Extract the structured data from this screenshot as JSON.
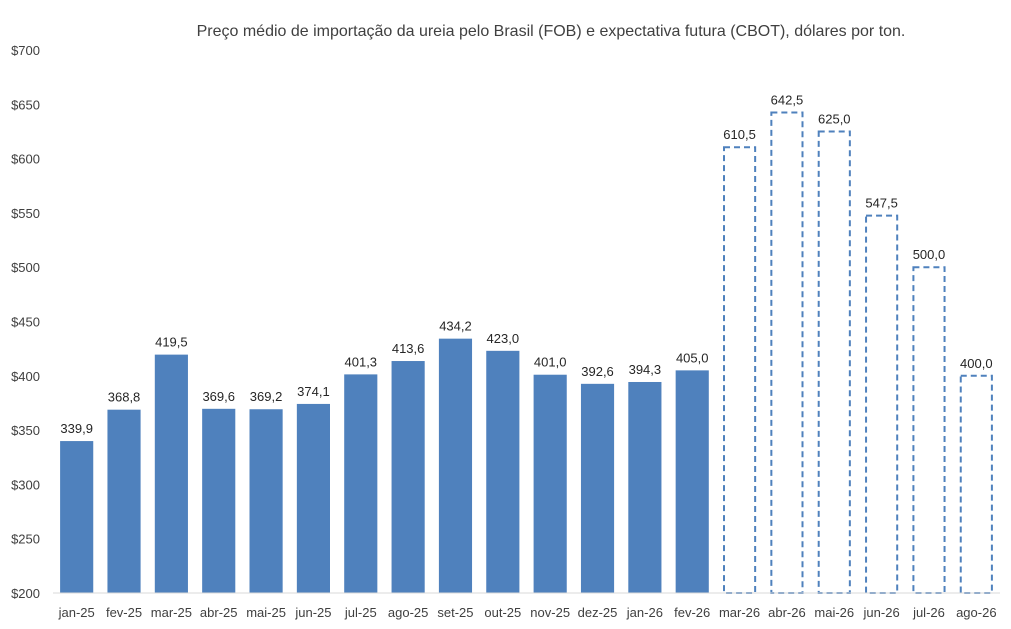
{
  "chart_data": {
    "type": "bar",
    "title": "Preço médio de importação da ureia pelo Brasil (FOB) e expectativa futura (CBOT), dólares por ton.",
    "xlabel": "",
    "ylabel": "",
    "ylim": [
      200,
      700
    ],
    "yticks": [
      200,
      250,
      300,
      350,
      400,
      450,
      500,
      550,
      600,
      650,
      700
    ],
    "ytick_labels": [
      "$200",
      "$250",
      "$300",
      "$350",
      "$400",
      "$450",
      "$500",
      "$550",
      "$600",
      "$650",
      "$700"
    ],
    "grid": false,
    "legend": "none",
    "categories": [
      "jan-25",
      "fev-25",
      "mar-25",
      "abr-25",
      "mai-25",
      "jun-25",
      "jul-25",
      "ago-25",
      "set-25",
      "out-25",
      "nov-25",
      "dez-25",
      "jan-26",
      "fev-26",
      "mar-26",
      "abr-26",
      "mai-26",
      "jun-26",
      "jul-26",
      "ago-26"
    ],
    "series": [
      {
        "name": "FOB",
        "style": "solid",
        "color": "#4F81BD",
        "values": [
          339.9,
          368.8,
          419.5,
          369.6,
          369.2,
          374.1,
          401.3,
          413.6,
          434.2,
          423.0,
          401.0,
          392.6,
          394.3,
          405.0,
          null,
          null,
          null,
          null,
          null,
          null
        ],
        "labels": [
          "339,9",
          "368,8",
          "419,5",
          "369,6",
          "369,2",
          "374,1",
          "401,3",
          "413,6",
          "434,2",
          "423,0",
          "401,0",
          "392,6",
          "394,3",
          "405,0",
          null,
          null,
          null,
          null,
          null,
          null
        ]
      },
      {
        "name": "CBOT",
        "style": "dashed",
        "color": "#4F81BD",
        "values": [
          null,
          null,
          null,
          null,
          null,
          null,
          null,
          null,
          null,
          null,
          null,
          null,
          null,
          null,
          610.5,
          642.5,
          625.0,
          547.5,
          500.0,
          400.0
        ],
        "labels": [
          null,
          null,
          null,
          null,
          null,
          null,
          null,
          null,
          null,
          null,
          null,
          null,
          null,
          null,
          "610,5",
          "642,5",
          "625,0",
          "547,5",
          "500,0",
          "400,0"
        ]
      }
    ]
  }
}
